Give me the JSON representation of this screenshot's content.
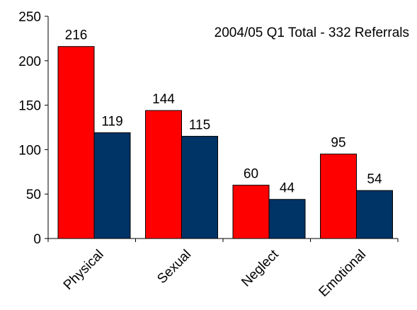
{
  "chart_data": {
    "type": "bar",
    "title": "2004/05 Q1 Total - 332 Referrals",
    "categories": [
      "Physical",
      "Sexual",
      "Neglect",
      "Emotional"
    ],
    "series": [
      {
        "color": "#ff0000",
        "values": [
          216,
          144,
          60,
          95
        ]
      },
      {
        "color": "#003366",
        "values": [
          119,
          115,
          44,
          54
        ]
      }
    ],
    "ylim": [
      0,
      250
    ],
    "yticks": [
      0,
      50,
      100,
      150,
      200,
      250
    ],
    "grid": false,
    "legend": "none"
  }
}
